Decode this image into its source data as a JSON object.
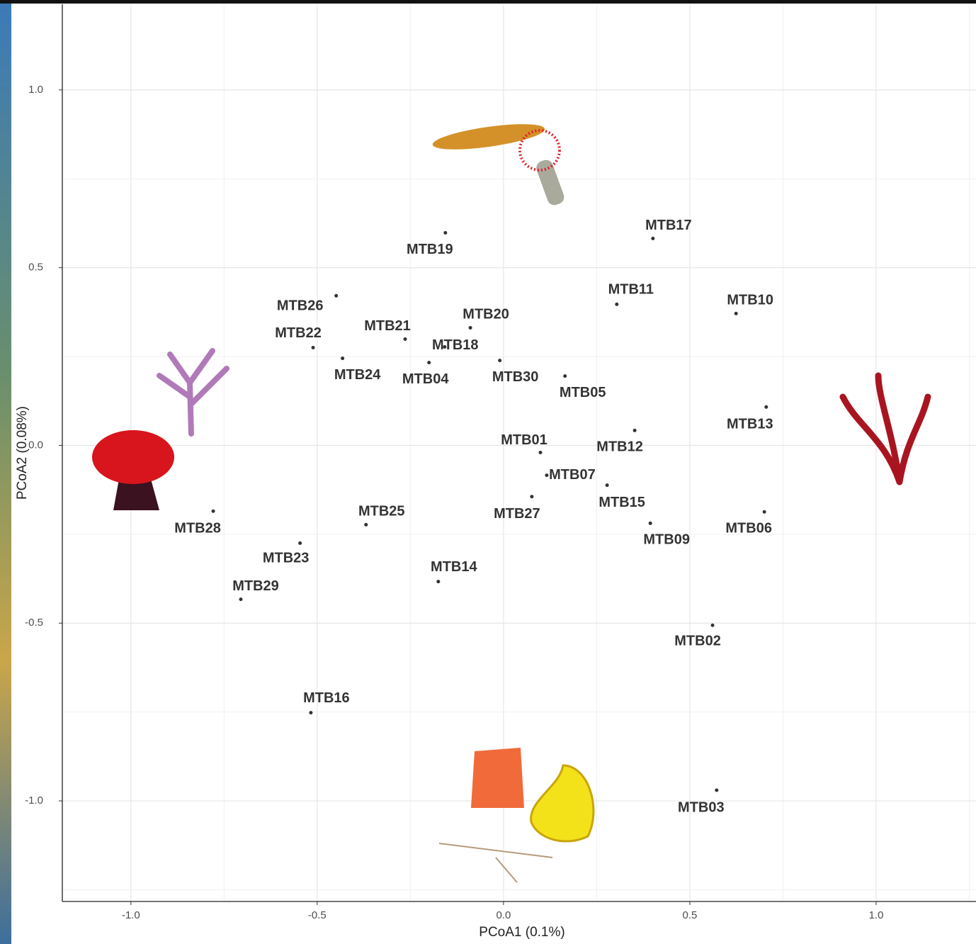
{
  "chart_data": {
    "type": "scatter",
    "xlabel": "PCoA1 (0.1%)",
    "ylabel": "PCoA2 (0.08%)",
    "xlim": [
      -1.184,
      1.268
    ],
    "ylim": [
      -1.283,
      1.241
    ],
    "xticks": [
      {
        "value": -1,
        "label": "-1.0"
      },
      -0.5,
      {
        "value": 0,
        "label": "0.0"
      },
      0.5,
      {
        "value": 1,
        "label": "1.0"
      }
    ],
    "yticks": [
      {
        "value": -1,
        "label": "-1.0"
      },
      -0.5,
      {
        "value": 0,
        "label": "0.0"
      },
      0.5,
      {
        "value": 1,
        "label": "1.0"
      }
    ],
    "grid": true,
    "minor_grid": true,
    "color": "#333333",
    "series": [
      {
        "name": null,
        "labels": [
          "MTB19",
          "MTB17",
          "MTB26",
          "MTB11",
          "MTB10",
          "MTB20",
          "MTB21",
          "MTB22",
          "MTB18",
          "MTB24",
          "MTB04",
          "MTB30",
          "MTB05",
          "MTB13",
          "MTB12",
          "MTB01",
          "MTB07",
          "MTB15",
          "MTB27",
          "MTB28",
          "MTB06",
          "MTB25",
          "MTB09",
          "MTB23",
          "MTB14",
          "MTB29",
          "MTB02",
          "MTB16",
          "MTB03"
        ],
        "x": [
          -0.156,
          0.401,
          -0.449,
          0.304,
          0.624,
          -0.089,
          -0.264,
          -0.511,
          -0.158,
          -0.432,
          -0.2,
          -0.01,
          0.165,
          0.705,
          0.352,
          0.099,
          0.116,
          0.278,
          0.076,
          -0.779,
          0.7,
          -0.369,
          0.394,
          -0.546,
          -0.175,
          -0.705,
          0.561,
          -0.517,
          0.572
        ],
        "values": [
          0.598,
          0.582,
          0.421,
          0.397,
          0.371,
          0.331,
          0.299,
          0.275,
          0.277,
          0.245,
          0.233,
          0.239,
          0.195,
          0.108,
          0.042,
          -0.02,
          -0.084,
          -0.112,
          -0.144,
          -0.185,
          -0.187,
          -0.223,
          -0.219,
          -0.275,
          -0.383,
          -0.433,
          -0.506,
          -0.752,
          -0.97
        ]
      }
    ]
  }
}
